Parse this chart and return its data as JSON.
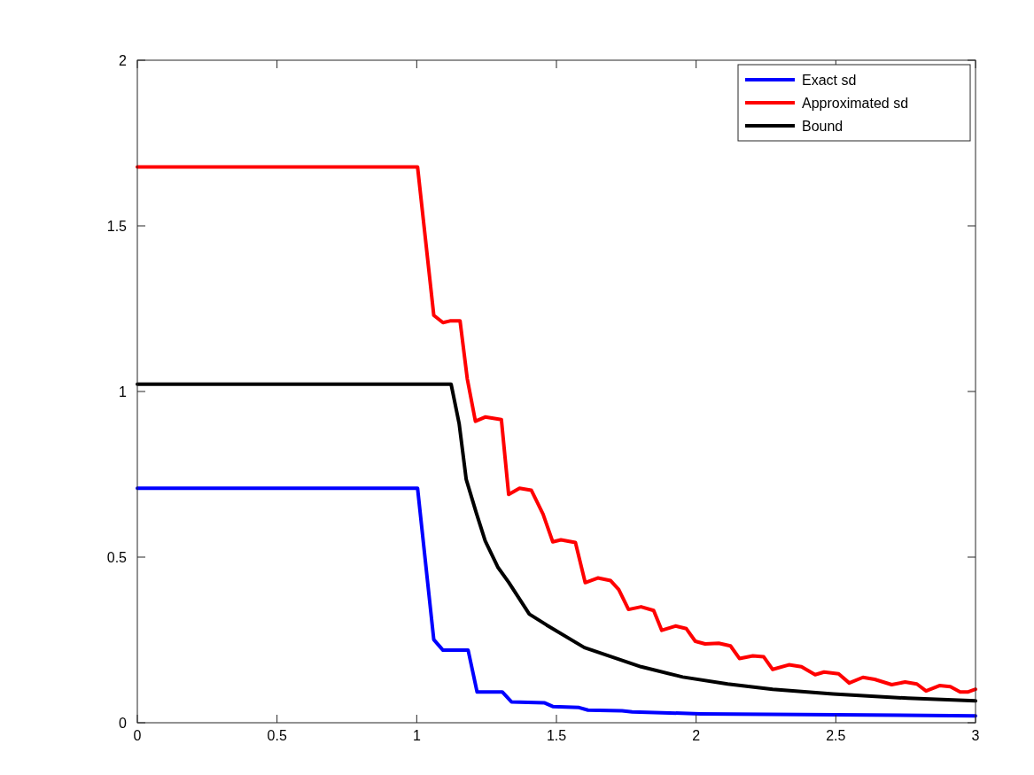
{
  "chart_data": {
    "type": "line",
    "xlim": [
      0,
      3
    ],
    "ylim": [
      0,
      2
    ],
    "xticks": [
      0,
      0.5,
      1,
      1.5,
      2,
      2.5,
      3
    ],
    "yticks": [
      0,
      0.5,
      1,
      1.5,
      2
    ],
    "legend": "top right",
    "grid": false,
    "line_style": "solid",
    "marker": "none",
    "series": [
      {
        "name": "Exact sd",
        "color": "#0000ff",
        "x": [
          0,
          1.003,
          1.061,
          1.094,
          1.184,
          1.216,
          1.306,
          1.339,
          1.458,
          1.487,
          1.581,
          1.613,
          1.735,
          1.771,
          2.016,
          2.5,
          3
        ],
        "values": [
          0.708,
          0.708,
          0.251,
          0.219,
          0.219,
          0.093,
          0.093,
          0.063,
          0.06,
          0.049,
          0.046,
          0.038,
          0.036,
          0.033,
          0.027,
          0.024,
          0.021
        ]
      },
      {
        "name": "Approximated sd",
        "color": "#ff0000",
        "x": [
          0,
          1.003,
          1.061,
          1.094,
          1.119,
          1.155,
          1.181,
          1.21,
          1.245,
          1.303,
          1.329,
          1.368,
          1.41,
          1.452,
          1.487,
          1.516,
          1.568,
          1.603,
          1.648,
          1.694,
          1.723,
          1.758,
          1.803,
          1.848,
          1.877,
          1.926,
          1.965,
          1.997,
          2.032,
          2.081,
          2.123,
          2.155,
          2.203,
          2.242,
          2.274,
          2.332,
          2.377,
          2.426,
          2.458,
          2.51,
          2.548,
          2.597,
          2.639,
          2.7,
          2.748,
          2.79,
          2.823,
          2.871,
          2.91,
          2.945,
          2.974,
          3
        ],
        "values": [
          1.678,
          1.678,
          1.23,
          1.208,
          1.213,
          1.213,
          1.038,
          0.91,
          0.923,
          0.915,
          0.689,
          0.708,
          0.702,
          0.63,
          0.546,
          0.552,
          0.544,
          0.423,
          0.437,
          0.429,
          0.402,
          0.342,
          0.35,
          0.339,
          0.279,
          0.292,
          0.284,
          0.246,
          0.238,
          0.24,
          0.232,
          0.194,
          0.202,
          0.199,
          0.161,
          0.175,
          0.169,
          0.145,
          0.153,
          0.148,
          0.12,
          0.137,
          0.131,
          0.115,
          0.123,
          0.117,
          0.096,
          0.112,
          0.109,
          0.093,
          0.093,
          0.101
        ]
      },
      {
        "name": "Bound",
        "color": "#000000",
        "x": [
          0,
          1.123,
          1.152,
          1.177,
          1.213,
          1.245,
          1.29,
          1.329,
          1.403,
          1.465,
          1.6,
          1.803,
          1.952,
          2.113,
          2.274,
          2.49,
          2.758,
          3
        ],
        "values": [
          1.022,
          1.022,
          0.902,
          0.735,
          0.634,
          0.549,
          0.47,
          0.424,
          0.328,
          0.295,
          0.227,
          0.169,
          0.138,
          0.117,
          0.101,
          0.087,
          0.074,
          0.066
        ]
      }
    ]
  }
}
